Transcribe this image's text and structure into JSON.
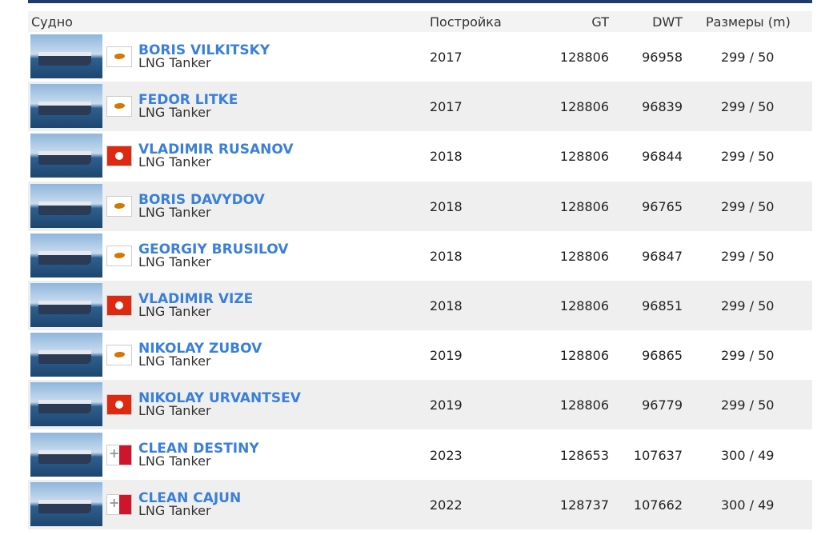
{
  "table": {
    "header": [
      "Судно",
      "Постройка",
      "GT",
      "DWT",
      "Размеры (m)"
    ],
    "rows": [
      {
        "name": "BORIS VILKITSKY",
        "type": "LNG Tanker",
        "built": 2017,
        "gt": 128806,
        "dwt": 96958,
        "size": "299 / 50"
      },
      {
        "name": "FEDOR LITKE",
        "type": "LNG Tanker",
        "built": 2017,
        "gt": 128806,
        "dwt": 96839,
        "size": "299 / 50"
      },
      {
        "name": "VLADIMIR RUSANOV",
        "type": "LNG Tanker",
        "built": 2018,
        "gt": 128806,
        "dwt": 96844,
        "size": "299 / 50"
      },
      {
        "name": "BORIS DAVYDOV",
        "type": "LNG Tanker",
        "built": 2018,
        "gt": 128806,
        "dwt": 96765,
        "size": "299 / 50"
      },
      {
        "name": "GEORGIY BRUSILOV",
        "type": "LNG Tanker",
        "built": 2018,
        "gt": 128806,
        "dwt": 96847,
        "size": "299 / 50"
      },
      {
        "name": "VLADIMIR VIZE",
        "type": "LNG Tanker",
        "built": 2018,
        "gt": 128806,
        "dwt": 96851,
        "size": "299 / 50"
      },
      {
        "name": "NIKOLAY ZUBOV",
        "type": "LNG Tanker",
        "built": 2019,
        "gt": 128806,
        "dwt": 96865,
        "size": "299 / 50"
      },
      {
        "name": "NIKOLAY URVANTSEV",
        "type": "LNG Tanker",
        "built": 2019,
        "gt": 128806,
        "dwt": 96779,
        "size": "299 / 50"
      },
      {
        "name": "CLEAN DESTINY",
        "type": "LNG Tanker",
        "built": 2023,
        "gt": 128653,
        "dwt": 107637,
        "size": "300 / 49"
      },
      {
        "name": "CLEAN CAJUN",
        "type": "LNG Tanker",
        "built": 2022,
        "gt": 128737,
        "dwt": 107662,
        "size": "300 / 49"
      }
    ]
  }
}
